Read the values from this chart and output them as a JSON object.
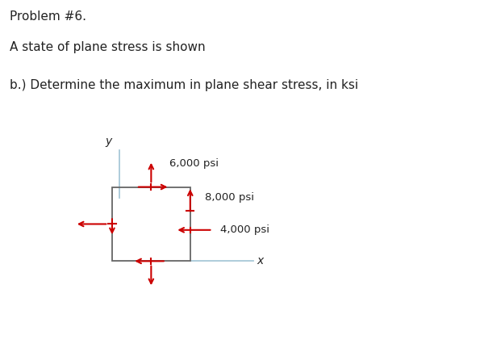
{
  "title_line1": "Problem #6.",
  "title_line2": "A state of plane stress is shown",
  "title_line3": "b.) Determine the maximum in plane shear stress, in ksi",
  "arrow_color": "#cc0000",
  "axis_color": "#a8c8d8",
  "box_color": "#666666",
  "text_color": "#222222",
  "label_6000": "6,000 psi",
  "label_8000": "8,000 psi",
  "label_4000": "4,000 psi",
  "label_x": "x",
  "label_y": "y",
  "bg_color": "#ffffff",
  "bx": 0.14,
  "by": 0.17,
  "bw": 0.21,
  "bh": 0.28
}
